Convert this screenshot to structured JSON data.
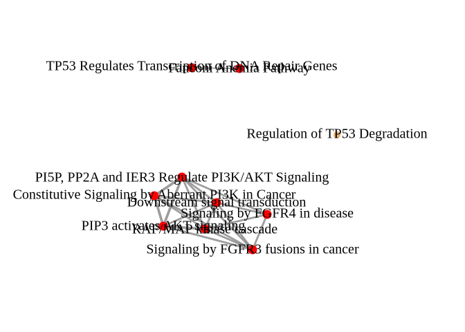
{
  "colors": {
    "edge": "#8c8c8c",
    "node_default": "#ff0000",
    "node_isolated": "#e8b06a"
  },
  "network": {
    "nodes": [
      {
        "id": "n1",
        "label": "TP53 Regulates Transcription of DNA Repair Genes",
        "color": "#ff0000"
      },
      {
        "id": "n2",
        "label": "Fanconi Anemia Pathway",
        "color": "#ff0000"
      },
      {
        "id": "n3",
        "label": "Regulation of TP53 Degradation",
        "color": "#e8b06a"
      },
      {
        "id": "n4",
        "label": "PI5P, PP2A and IER3 Regulate PI3K/AKT Signaling",
        "color": "#ff0000"
      },
      {
        "id": "n5",
        "label": "Constitutive Signaling by Aberrant PI3K in Cancer",
        "color": "#ff0000"
      },
      {
        "id": "n6",
        "label": "Downstream signal transduction",
        "color": "#ff0000"
      },
      {
        "id": "n7",
        "label": "Signaling by FGFR4 in disease",
        "color": "#ff0000"
      },
      {
        "id": "n8",
        "label": "PIP3 activates AKT signaling",
        "color": "#ff0000"
      },
      {
        "id": "n9",
        "label": "RAF/MAP kinase cascade",
        "color": "#ff0000"
      },
      {
        "id": "n10",
        "label": "Signaling by FGFR3 fusions in cancer",
        "color": "#ff0000"
      }
    ],
    "edges": [
      {
        "source": "n1",
        "target": "n2",
        "weight": 1
      },
      {
        "source": "n4",
        "target": "n5",
        "weight": 3
      },
      {
        "source": "n4",
        "target": "n8",
        "weight": 3
      },
      {
        "source": "n4",
        "target": "n6",
        "weight": 2
      },
      {
        "source": "n4",
        "target": "n9",
        "weight": 2
      },
      {
        "source": "n4",
        "target": "n7",
        "weight": 2
      },
      {
        "source": "n4",
        "target": "n10",
        "weight": 2
      },
      {
        "source": "n5",
        "target": "n8",
        "weight": 3
      },
      {
        "source": "n5",
        "target": "n9",
        "weight": 2
      },
      {
        "source": "n5",
        "target": "n6",
        "weight": 2
      },
      {
        "source": "n5",
        "target": "n10",
        "weight": 2
      },
      {
        "source": "n6",
        "target": "n7",
        "weight": 2
      },
      {
        "source": "n6",
        "target": "n9",
        "weight": 2
      },
      {
        "source": "n6",
        "target": "n10",
        "weight": 2
      },
      {
        "source": "n6",
        "target": "n8",
        "weight": 2
      },
      {
        "source": "n7",
        "target": "n10",
        "weight": 2
      },
      {
        "source": "n7",
        "target": "n9",
        "weight": 2
      },
      {
        "source": "n8",
        "target": "n9",
        "weight": 3
      },
      {
        "source": "n8",
        "target": "n10",
        "weight": 2
      },
      {
        "source": "n9",
        "target": "n10",
        "weight": 2
      }
    ]
  }
}
